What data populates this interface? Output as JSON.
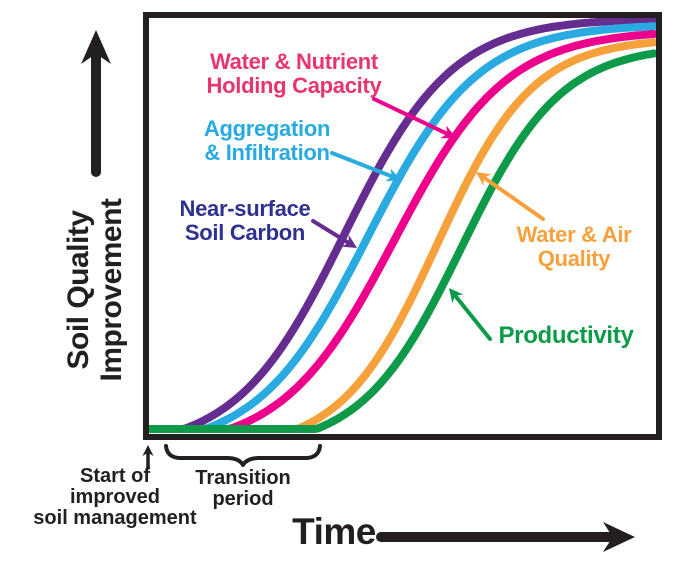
{
  "colors": {
    "axis_black": "#231F20",
    "soil_carbon_curve": "#662D91",
    "soil_carbon_label": "#2E3192",
    "aggregation_curve": "#29ABE2",
    "nutrient_curve": "#EC008C",
    "nutrient_label": "#E8356F",
    "water_air_curve": "#F6A13C",
    "productivity_curve": "#0D9B49"
  },
  "y_axis": {
    "line1": "Soil Quality",
    "line2": "Improvement"
  },
  "x_axis": {
    "label": "Time"
  },
  "annotations": {
    "start_marker": {
      "line1": "Start of",
      "line2": "improved",
      "line3": "soil management"
    },
    "transition": {
      "line1": "Transition",
      "line2": "period"
    }
  },
  "chart_data": {
    "type": "line",
    "subtype": "conceptual sigmoid response curves, no numeric scale",
    "xlabel": "Time",
    "ylabel": "Soil Quality Improvement",
    "legend_position": "labels with arrows pointing at each curve",
    "grid": false,
    "x_annotations": [
      "Start of improved soil management",
      "Transition period"
    ],
    "series": [
      {
        "name": "Near-surface Soil Carbon",
        "label_line1": "Near-surface",
        "label_line2": "Soil Carbon",
        "color": "#662D91",
        "label_color": "#2E3192",
        "response_order": 1,
        "shape": "sigmoid",
        "midpoint_frac": 0.386,
        "steepness_frac": 0.107
      },
      {
        "name": "Aggregation & Infiltration",
        "label_line1": "Aggregation",
        "label_line2": "& Infiltration",
        "color": "#29ABE2",
        "label_color": "#29ABE2",
        "response_order": 2,
        "shape": "sigmoid",
        "midpoint_frac": 0.432,
        "steepness_frac": 0.109
      },
      {
        "name": "Water & Nutrient Holding Capacity",
        "label_line1": "Water & Nutrient",
        "label_line2": "Holding Capacity",
        "color": "#EC008C",
        "label_color": "#E8356F",
        "response_order": 3,
        "shape": "sigmoid",
        "midpoint_frac": 0.485,
        "steepness_frac": 0.111
      },
      {
        "name": "Water & Air Quality",
        "label_line1": "Water & Air",
        "label_line2": "Quality",
        "color": "#F6A13C",
        "label_color": "#F6A13C",
        "response_order": 4,
        "shape": "sigmoid",
        "midpoint_frac": 0.57,
        "steepness_frac": 0.095
      },
      {
        "name": "Productivity",
        "label_line1": "Productivity",
        "label_line2": "",
        "color": "#0D9B49",
        "label_color": "#0D9B49",
        "response_order": 5,
        "shape": "sigmoid",
        "midpoint_frac": 0.618,
        "steepness_frac": 0.099
      }
    ]
  }
}
